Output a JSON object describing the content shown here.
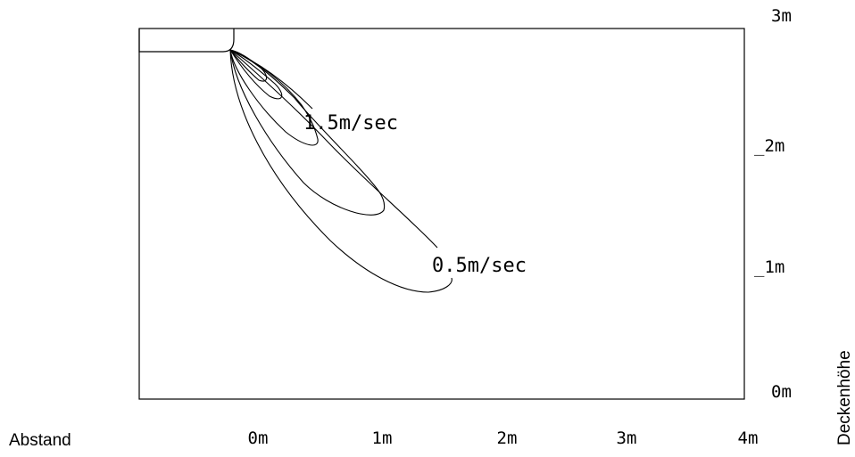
{
  "chart_data": {
    "type": "contour",
    "x_ticks": [
      "0m",
      "1m",
      "2m",
      "3m",
      "4m"
    ],
    "y_ticks": [
      "0m",
      "_1m",
      "_2m",
      "3m"
    ],
    "x_axis_label": "Abstand",
    "y_axis_label": "Deckenhöhe",
    "contours": [
      {
        "label": "1.5m/sec",
        "value": 1.5
      },
      {
        "label": "0.5m/sec",
        "value": 0.5
      }
    ],
    "xlim": [
      -1,
      4
    ],
    "ylim": [
      0,
      3
    ]
  }
}
